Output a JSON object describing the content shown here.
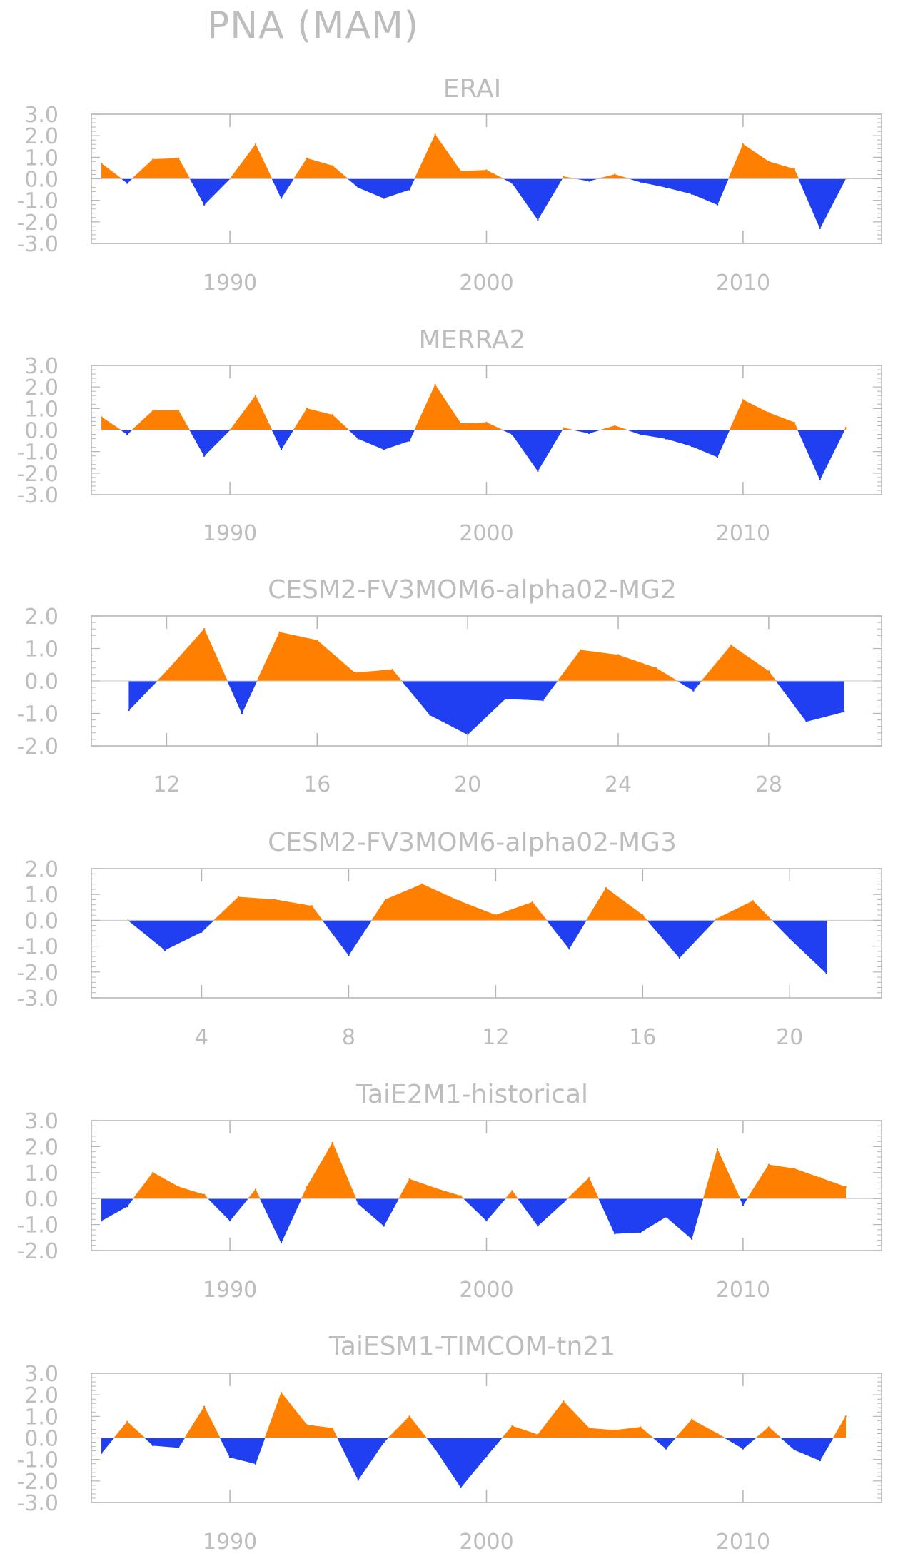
{
  "title": "PNA (MAM)",
  "colors": {
    "positive": "#ff8000",
    "negative": "#1f3ff0",
    "axis": "#b4b4b4",
    "text": "#bdbdbd"
  },
  "chart_data": [
    {
      "type": "area",
      "title": "ERAI",
      "ylim": [
        -3,
        3
      ],
      "yticks": [
        "3.0",
        "2.0",
        "1.0",
        "0.0",
        "-1.0",
        "-2.0",
        "-3.0"
      ],
      "xlim": [
        1984.6,
        2015.4
      ],
      "xticks": [
        1990,
        2000,
        2010
      ],
      "x": [
        1985,
        1986,
        1987,
        1988,
        1989,
        1990,
        1991,
        1992,
        1993,
        1994,
        1995,
        1996,
        1997,
        1998,
        1999,
        2000,
        2001,
        2002,
        2003,
        2004,
        2005,
        2006,
        2007,
        2008,
        2009,
        2010,
        2011,
        2012,
        2013,
        2014
      ],
      "values": [
        0.7,
        -0.2,
        0.9,
        0.95,
        -1.2,
        0.0,
        1.6,
        -0.9,
        0.95,
        0.6,
        -0.4,
        -0.9,
        -0.5,
        2.05,
        0.35,
        0.4,
        -0.2,
        -1.9,
        0.1,
        -0.1,
        0.2,
        -0.15,
        -0.4,
        -0.7,
        -1.2,
        1.6,
        0.8,
        0.45,
        -2.3,
        0.0
      ]
    },
    {
      "type": "area",
      "title": "MERRA2",
      "ylim": [
        -3,
        3
      ],
      "yticks": [
        "3.0",
        "2.0",
        "1.0",
        "0.0",
        "-1.0",
        "-2.0",
        "-3.0"
      ],
      "xlim": [
        1984.6,
        2015.4
      ],
      "xticks": [
        1990,
        2000,
        2010
      ],
      "x": [
        1985,
        1986,
        1987,
        1988,
        1989,
        1990,
        1991,
        1992,
        1993,
        1994,
        1995,
        1996,
        1997,
        1998,
        1999,
        2000,
        2001,
        2002,
        2003,
        2004,
        2005,
        2006,
        2007,
        2008,
        2009,
        2010,
        2011,
        2012,
        2013,
        2014
      ],
      "values": [
        0.6,
        -0.2,
        0.9,
        0.9,
        -1.2,
        0.0,
        1.6,
        -0.9,
        1.0,
        0.7,
        -0.4,
        -0.9,
        -0.5,
        2.1,
        0.3,
        0.35,
        -0.2,
        -1.9,
        0.1,
        -0.15,
        0.2,
        -0.2,
        -0.4,
        -0.75,
        -1.25,
        1.4,
        0.8,
        0.35,
        -2.3,
        0.1
      ]
    },
    {
      "type": "area",
      "title": "CESM2-FV3MOM6-alpha02-MG2",
      "ylim": [
        -2,
        2
      ],
      "yticks": [
        "2.0",
        "1.0",
        "0.0",
        "-1.0",
        "-2.0"
      ],
      "xlim": [
        10,
        31
      ],
      "xticks": [
        12,
        16,
        20,
        24,
        28
      ],
      "x": [
        11,
        12,
        13,
        14,
        15,
        16,
        17,
        18,
        19,
        20,
        21,
        22,
        23,
        24,
        25,
        26,
        27,
        28,
        29,
        30
      ],
      "values": [
        -0.9,
        0.3,
        1.6,
        -1.0,
        1.5,
        1.25,
        0.25,
        0.35,
        -1.05,
        -1.65,
        -0.55,
        -0.6,
        0.95,
        0.8,
        0.4,
        -0.3,
        1.1,
        0.3,
        -1.25,
        -0.95
      ]
    },
    {
      "type": "area",
      "title": "CESM2-FV3MOM6-alpha02-MG3",
      "ylim": [
        -3,
        2
      ],
      "yticks": [
        "2.0",
        "1.0",
        "0.0",
        "-1.0",
        "-2.0",
        "-3.0"
      ],
      "xlim": [
        1,
        22.5
      ],
      "xticks": [
        4,
        8,
        12,
        16,
        20
      ],
      "x": [
        2,
        3,
        4,
        5,
        6,
        7,
        8,
        9,
        10,
        11,
        12,
        13,
        14,
        15,
        16,
        17,
        18,
        19,
        20,
        21
      ],
      "values": [
        0.0,
        -1.15,
        -0.45,
        0.9,
        0.8,
        0.55,
        -1.35,
        0.8,
        1.4,
        0.75,
        0.2,
        0.7,
        -1.1,
        1.25,
        0.2,
        -1.45,
        0.05,
        0.75,
        -0.7,
        -2.05
      ]
    },
    {
      "type": "area",
      "title": "TaiE2M1-historical",
      "ylim": [
        -2,
        3
      ],
      "yticks": [
        "3.0",
        "2.0",
        "1.0",
        "0.0",
        "-1.0",
        "-2.0"
      ],
      "xlim": [
        1984.6,
        2015.4
      ],
      "xticks": [
        1990,
        2000,
        2010
      ],
      "x": [
        1985,
        1986,
        1987,
        1988,
        1989,
        1990,
        1991,
        1992,
        1993,
        1994,
        1995,
        1996,
        1997,
        1998,
        1999,
        2000,
        2001,
        2002,
        2003,
        2004,
        2005,
        2006,
        2007,
        2008,
        2009,
        2010,
        2011,
        2012,
        2013,
        2014
      ],
      "values": [
        -0.85,
        -0.3,
        1.0,
        0.45,
        0.15,
        -0.85,
        0.35,
        -1.7,
        0.45,
        2.15,
        -0.2,
        -1.05,
        0.75,
        0.4,
        0.1,
        -0.85,
        0.3,
        -1.05,
        -0.15,
        0.8,
        -1.35,
        -1.3,
        -0.7,
        -1.55,
        1.9,
        -0.25,
        1.3,
        1.15,
        0.8,
        0.45
      ]
    },
    {
      "type": "area",
      "title": "TaiESM1-TIMCOM-tn21",
      "ylim": [
        -3,
        3
      ],
      "yticks": [
        "3.0",
        "2.0",
        "1.0",
        "0.0",
        "-1.0",
        "-2.0",
        "-3.0"
      ],
      "xlim": [
        1984.6,
        2015.4
      ],
      "xticks": [
        1990,
        2000,
        2010
      ],
      "x": [
        1985,
        1986,
        1987,
        1988,
        1989,
        1990,
        1991,
        1992,
        1993,
        1994,
        1995,
        1996,
        1997,
        1998,
        1999,
        2000,
        2001,
        2002,
        2003,
        2004,
        2005,
        2006,
        2007,
        2008,
        2009,
        2010,
        2011,
        2012,
        2013,
        2014
      ],
      "values": [
        -0.7,
        0.75,
        -0.35,
        -0.45,
        1.45,
        -0.9,
        -1.2,
        2.1,
        0.6,
        0.45,
        -1.95,
        -0.2,
        1.0,
        -0.5,
        -2.3,
        -0.85,
        0.55,
        0.15,
        1.7,
        0.45,
        0.35,
        0.5,
        -0.5,
        0.85,
        0.2,
        -0.5,
        0.5,
        -0.55,
        -1.05,
        1.0
      ]
    }
  ]
}
